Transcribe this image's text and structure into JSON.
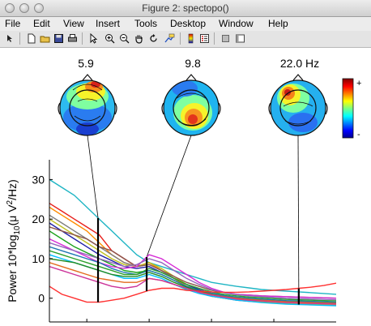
{
  "window": {
    "title": "Figure 2: spectopo()"
  },
  "menu": [
    "File",
    "Edit",
    "View",
    "Insert",
    "Tools",
    "Desktop",
    "Window",
    "Help"
  ],
  "toolbar": {
    "icons": [
      "arrow-icon",
      "new-file-icon",
      "open-folder-icon",
      "save-icon",
      "print-icon",
      "pointer-icon",
      "zoom-in-icon",
      "zoom-out-icon",
      "pan-hand-icon",
      "rotate-icon",
      "data-cursor-icon",
      "colorbar-icon",
      "legend-icon",
      "hide-tools-icon",
      "plot-tools-icon"
    ]
  },
  "chart_data": {
    "type": "line",
    "xlabel": "",
    "ylabel_main": "Power 10*log",
    "ylabel_sub": "10",
    "ylabel_tail": "(μ V",
    "ylabel_sup": "2",
    "ylabel_end": "/Hz)",
    "xlim": [
      2,
      25
    ],
    "ylim": [
      -6,
      35
    ],
    "xticks": [
      5,
      10,
      15,
      20
    ],
    "yticks": [
      0,
      10,
      20,
      30
    ],
    "grid": false,
    "colormap": "jet",
    "colorbar": {
      "top_label": "+",
      "bottom_label": "-"
    },
    "topo_labels": [
      "5.9",
      "9.8",
      "22.0 Hz"
    ],
    "markers": [
      5.9,
      9.8,
      22.0
    ],
    "x": [
      2,
      3,
      4,
      5,
      6,
      7,
      8,
      9,
      10,
      11,
      12,
      13,
      14,
      15,
      16,
      17,
      18,
      19,
      20,
      21,
      22,
      23,
      24,
      25
    ],
    "series": [
      {
        "color": "#1fb5c4",
        "values": [
          30,
          28,
          26,
          23,
          20,
          17,
          14,
          11,
          9,
          8,
          7,
          6,
          5,
          4,
          3.5,
          3,
          2.6,
          2.2,
          2,
          1.8,
          1.6,
          1.4,
          1.2,
          1
        ]
      },
      {
        "color": "#e8201c",
        "values": [
          24,
          22,
          20,
          18,
          16,
          12,
          10,
          8,
          9,
          7,
          5,
          3,
          1.5,
          0.5,
          0,
          -0.5,
          -0.8,
          -1,
          -1.2,
          -1.4,
          -1.5,
          -1.6,
          -1.7,
          -1.8
        ]
      },
      {
        "color": "#ff8c00",
        "values": [
          23,
          21,
          19,
          17,
          14,
          11,
          9,
          8,
          9,
          7,
          5,
          3,
          1.5,
          0.5,
          0,
          -0.4,
          -0.6,
          -0.8,
          -1,
          -1.2,
          -1.3,
          -1.4,
          -1.5,
          -1.6
        ]
      },
      {
        "color": "#7f7f7f",
        "values": [
          21,
          19,
          17,
          15,
          13,
          11,
          9,
          8,
          8.5,
          7,
          5,
          3.5,
          2,
          1,
          0.5,
          0,
          -0.3,
          -0.5,
          -0.7,
          -0.9,
          -1,
          -1.1,
          -1.2,
          -1.3
        ]
      },
      {
        "color": "#c0c020",
        "values": [
          20,
          18,
          16,
          14,
          12,
          10,
          8.5,
          8,
          9,
          7.5,
          5.5,
          3.5,
          2,
          1,
          0.3,
          -0.2,
          -0.5,
          -0.8,
          -1,
          -1.2,
          -1.3,
          -1.4,
          -1.5,
          -1.6
        ]
      },
      {
        "color": "#1f1fa8",
        "values": [
          19,
          17,
          15,
          13,
          11,
          9.5,
          8,
          7.5,
          8,
          6.5,
          5,
          3.5,
          2.2,
          1.2,
          0.5,
          0,
          -0.3,
          -0.6,
          -0.8,
          -1,
          -1.1,
          -1.2,
          -1.3,
          -1.4
        ]
      },
      {
        "color": "#8c564b",
        "values": [
          18,
          17,
          16,
          15,
          13,
          12,
          10,
          8,
          8.5,
          7,
          5.5,
          4,
          3,
          2,
          1.5,
          1,
          0.8,
          0.6,
          0.5,
          0.4,
          0.3,
          0.2,
          0.1,
          0
        ]
      },
      {
        "color": "#1aa11a",
        "values": [
          17,
          15,
          13,
          11.5,
          10,
          8.5,
          7,
          6.5,
          7,
          6,
          4.5,
          3,
          2,
          1.2,
          0.6,
          0.2,
          -0.1,
          -0.4,
          -0.6,
          -0.8,
          -0.9,
          -1,
          -1.1,
          -1.2
        ]
      },
      {
        "color": "#d62ad6",
        "values": [
          15,
          13.5,
          12,
          10.5,
          9,
          8,
          7.5,
          8,
          11,
          10,
          8,
          6,
          4,
          2.5,
          1.5,
          1,
          0.8,
          0.6,
          0.5,
          0.4,
          0.3,
          0.2,
          0.1,
          0
        ]
      },
      {
        "color": "#9467bd",
        "values": [
          14,
          13,
          12,
          11,
          10,
          9,
          8,
          8.5,
          10,
          9,
          7,
          5,
          3.5,
          2.2,
          1.4,
          0.9,
          0.6,
          0.4,
          0.2,
          0,
          -0.1,
          -0.2,
          -0.3,
          -0.4
        ]
      },
      {
        "color": "#1f77b4",
        "values": [
          13,
          12,
          11,
          10,
          9,
          7.5,
          6.5,
          6,
          7,
          6,
          4.5,
          3,
          2,
          1.3,
          0.7,
          0.3,
          0,
          -0.2,
          -0.4,
          -0.6,
          -0.7,
          -0.8,
          -0.9,
          -1
        ]
      },
      {
        "color": "#2ca02c",
        "values": [
          12,
          11,
          10,
          9,
          8,
          7,
          6,
          6,
          7.5,
          6.5,
          5,
          3.5,
          2.5,
          1.6,
          1,
          0.6,
          0.3,
          0.1,
          -0.1,
          -0.3,
          -0.4,
          -0.5,
          -0.6,
          -0.7
        ]
      },
      {
        "color": "#00bfff",
        "values": [
          11,
          10,
          9,
          8,
          7,
          6,
          5,
          5,
          6,
          5,
          3.5,
          2.2,
          1.2,
          0.5,
          0,
          -0.5,
          -0.8,
          -1.1,
          -1.3,
          -1.5,
          -1.6,
          -1.7,
          -1.8,
          -1.9
        ]
      },
      {
        "color": "#228b22",
        "values": [
          10,
          9.5,
          9,
          8,
          7,
          6,
          5.5,
          5.5,
          6.5,
          5.5,
          4,
          2.8,
          1.8,
          1,
          0.4,
          0,
          -0.3,
          -0.5,
          -0.7,
          -0.9,
          -1,
          -1.1,
          -1.2,
          -1.3
        ]
      },
      {
        "color": "#e36b1e",
        "values": [
          9,
          8,
          7,
          6,
          5,
          4.5,
          4,
          4,
          5,
          4.5,
          3.5,
          2.5,
          1.6,
          0.9,
          0.4,
          0,
          -0.3,
          -0.5,
          -0.7,
          -0.9,
          -1,
          -1.1,
          -1.2,
          -1.3
        ]
      },
      {
        "color": "#ff3030",
        "values": [
          3,
          1,
          0,
          -1,
          -1,
          -0.5,
          0,
          1,
          2,
          2.5,
          2.5,
          2,
          1.8,
          1.6,
          1.5,
          1.5,
          1.6,
          1.8,
          2,
          2.2,
          2.5,
          2.8,
          3.2,
          3.8
        ]
      },
      {
        "color": "#cc3399",
        "values": [
          8,
          7,
          6,
          5,
          4,
          3,
          2.5,
          3,
          5,
          4.5,
          3.5,
          2.5,
          1.5,
          0.8,
          0.3,
          -0.2,
          -0.5,
          -0.7,
          -0.9,
          -1.1,
          -1.2,
          -1.3,
          -1.4,
          -1.5
        ]
      }
    ]
  }
}
